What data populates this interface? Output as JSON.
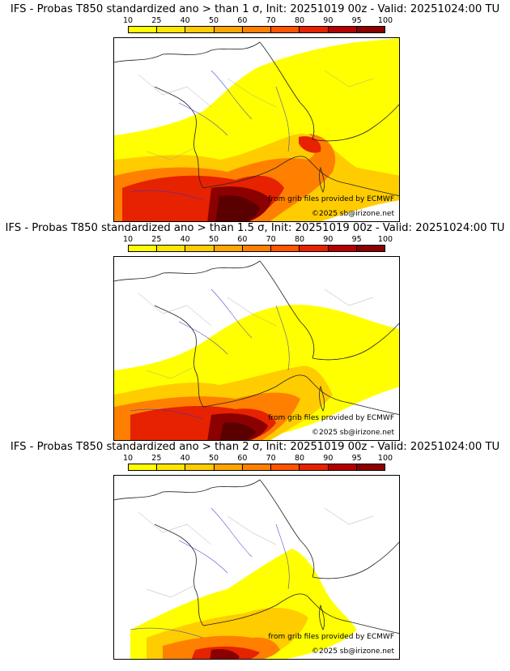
{
  "colorbar": {
    "ticks": [
      "10",
      "25",
      "40",
      "50",
      "60",
      "70",
      "80",
      "90",
      "95",
      "100"
    ],
    "colors": [
      "#ffff00",
      "#ffe600",
      "#ffcc00",
      "#ffa500",
      "#ff8000",
      "#ff5500",
      "#e62200",
      "#b40000",
      "#8b0000",
      "#5a0000"
    ]
  },
  "credit_ecmwf": "from grib files provided by ECMWF",
  "credit_copyright": "©2025 sb@irizone.net",
  "panels": [
    {
      "title": "IFS - Probas T850  standardized ano > than 1 σ, Init: 20251019 00z - Valid: 20251024:00 TU",
      "threshold_sigma": 1
    },
    {
      "title": "IFS - Probas T850  standardized ano > than 1.5 σ, Init: 20251019 00z - Valid: 20251024:00 TU",
      "threshold_sigma": 1.5
    },
    {
      "title": "IFS - Probas T850  standardized ano > than 2 σ, Init: 20251019 00z - Valid: 20251024:00 TU",
      "threshold_sigma": 2
    }
  ]
}
